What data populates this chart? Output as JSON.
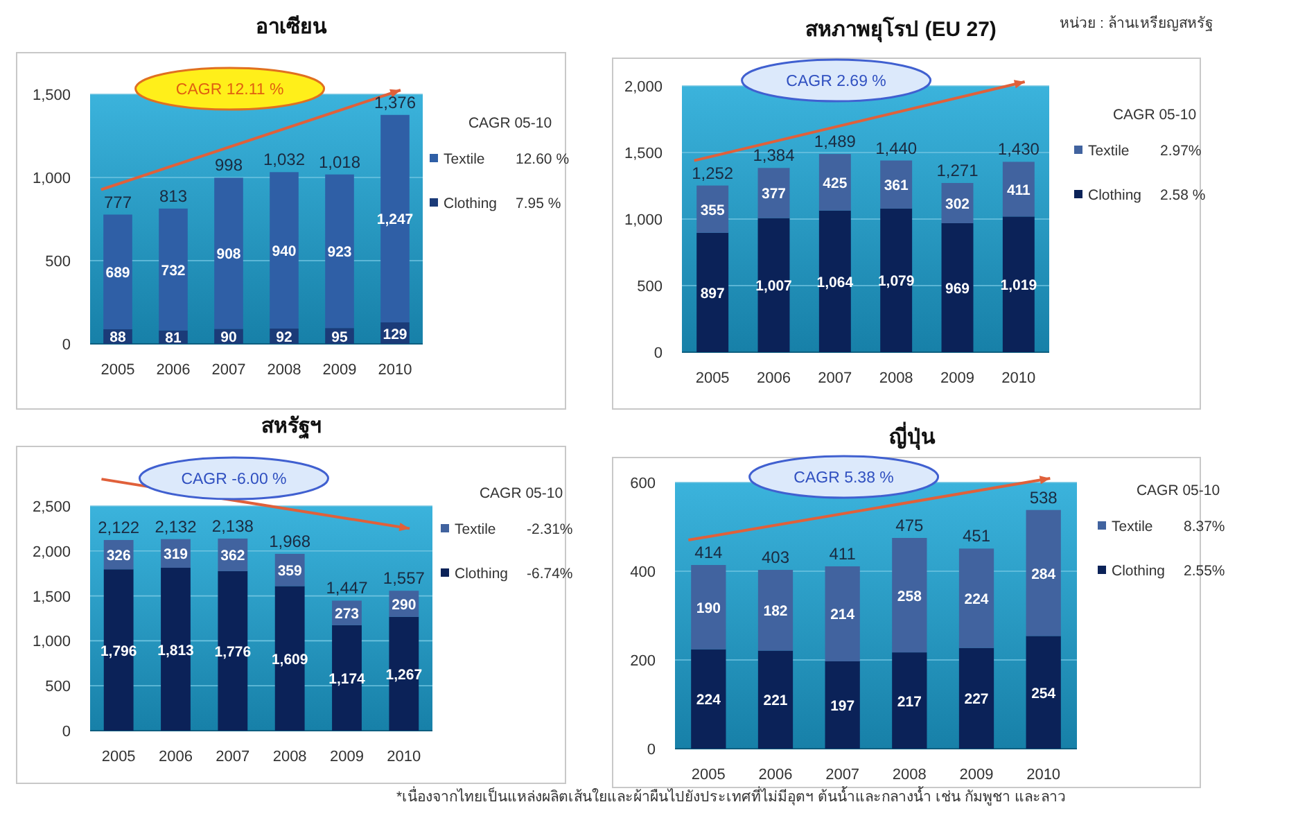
{
  "chart_data": [
    {
      "type": "bar",
      "title": "อาเซียน",
      "categories": [
        "2005",
        "2006",
        "2007",
        "2008",
        "2009",
        "2010"
      ],
      "stacked": true,
      "data_labels": true,
      "grid": "y",
      "legend": "right",
      "series": [
        {
          "name": "Clothing",
          "color": "#1b3b78",
          "values": [
            88,
            81,
            90,
            92,
            95,
            129
          ],
          "value_labels": [
            "88",
            "81",
            "90",
            "92",
            "95",
            "129"
          ]
        },
        {
          "name": "Textile",
          "color": "#2f5fa6",
          "values": [
            689,
            732,
            908,
            940,
            923,
            1247
          ],
          "value_labels": [
            "689",
            "732",
            "908",
            "940",
            "923",
            "1,247"
          ]
        }
      ],
      "totals": [
        "777",
        "813",
        "998",
        "1,032",
        "1,018",
        "1,376"
      ],
      "ylim": [
        0,
        1500
      ],
      "yticks": [
        0,
        500,
        {
          "value": 1000,
          "label": "1,000"
        },
        {
          "value": 1500,
          "label": "1,500"
        }
      ],
      "annotations": [
        "CAGR 12.11 %",
        "CAGR 05-10",
        "7.95 %",
        "12.60 %"
      ]
    },
    {
      "type": "bar",
      "title": "สหภาพยุโรป (EU 27)",
      "categories": [
        "2005",
        "2006",
        "2007",
        "2008",
        "2009",
        "2010"
      ],
      "stacked": true,
      "data_labels": true,
      "grid": "y",
      "legend": "right",
      "series": [
        {
          "name": "Clothing",
          "color": "#0b2258",
          "values": [
            897,
            1007,
            1064,
            1079,
            969,
            1019
          ],
          "value_labels": [
            "897",
            "1,007",
            "1,064",
            "1,079",
            "969",
            "1,019"
          ]
        },
        {
          "name": "Textile",
          "color": "#41639f",
          "values": [
            355,
            377,
            425,
            361,
            302,
            411
          ],
          "value_labels": [
            "355",
            "377",
            "425",
            "361",
            "302",
            "411"
          ]
        }
      ],
      "totals": [
        "1,252",
        "1,384",
        "1,489",
        "1,440",
        "1,271",
        "1,430"
      ],
      "ylim": [
        0,
        2000
      ],
      "yticks": [
        0,
        500,
        {
          "value": 1000,
          "label": "1,000"
        },
        {
          "value": 1500,
          "label": "1,500"
        },
        {
          "value": 2000,
          "label": "2,000"
        }
      ],
      "annotations": [
        "CAGR 2.69 %",
        "CAGR 05-10",
        "2.58 %",
        "2.97%",
        "หน่วย : ล้านเหรียญสหรัฐ"
      ]
    },
    {
      "type": "bar",
      "title": "สหรัฐฯ",
      "categories": [
        "2005",
        "2006",
        "2007",
        "2008",
        "2009",
        "2010"
      ],
      "stacked": true,
      "data_labels": true,
      "grid": "y",
      "legend": "right",
      "series": [
        {
          "name": "Clothing",
          "color": "#0b2258",
          "values": [
            1796,
            1813,
            1776,
            1609,
            1174,
            1267
          ],
          "value_labels": [
            "1,796",
            "1,813",
            "1,776",
            "1,609",
            "1,174",
            "1,267"
          ]
        },
        {
          "name": "Textile",
          "color": "#41639f",
          "values": [
            326,
            319,
            362,
            359,
            273,
            290
          ],
          "value_labels": [
            "326",
            "319",
            "362",
            "359",
            "273",
            "290"
          ]
        }
      ],
      "totals": [
        "2,122",
        "2,132",
        "2,138",
        "1,968",
        "1,447",
        "1,557"
      ],
      "ylim": [
        0,
        2500
      ],
      "yticks": [
        0,
        500,
        {
          "value": 1000,
          "label": "1,000"
        },
        {
          "value": 1500,
          "label": "1,500"
        },
        {
          "value": 2000,
          "label": "2,000"
        },
        {
          "value": 2500,
          "label": "2,500"
        }
      ],
      "annotations": [
        "CAGR -6.00 %",
        "CAGR 05-10",
        "-6.74%",
        "-2.31%"
      ]
    },
    {
      "type": "bar",
      "title": "ญี่ปุ่น",
      "categories": [
        "2005",
        "2006",
        "2007",
        "2008",
        "2009",
        "2010"
      ],
      "stacked": true,
      "data_labels": true,
      "grid": "y",
      "legend": "right",
      "series": [
        {
          "name": "Clothing",
          "color": "#0b2258",
          "values": [
            224,
            221,
            197,
            217,
            227,
            254
          ],
          "value_labels": [
            "224",
            "221",
            "197",
            "217",
            "227",
            "254"
          ]
        },
        {
          "name": "Textile",
          "color": "#41639f",
          "values": [
            190,
            182,
            214,
            258,
            224,
            284
          ],
          "value_labels": [
            "190",
            "182",
            "214",
            "258",
            "224",
            "284"
          ]
        }
      ],
      "totals": [
        "414",
        "403",
        "411",
        "475",
        "451",
        "538"
      ],
      "ylim": [
        0,
        600
      ],
      "yticks": [
        0,
        200,
        400,
        600
      ],
      "annotations": [
        "CAGR 5.38 %",
        "CAGR 05-10",
        "2.55%",
        "8.37%",
        "*เนื่องจากไทยเป็นแหล่งผลิตเส้นใยและผ้าผืนไปยังประเทศที่ไม่มีอุตฯ ต้นน้ำและกลางน้ำ เช่น กัมพูชา และลาว"
      ]
    }
  ]
}
